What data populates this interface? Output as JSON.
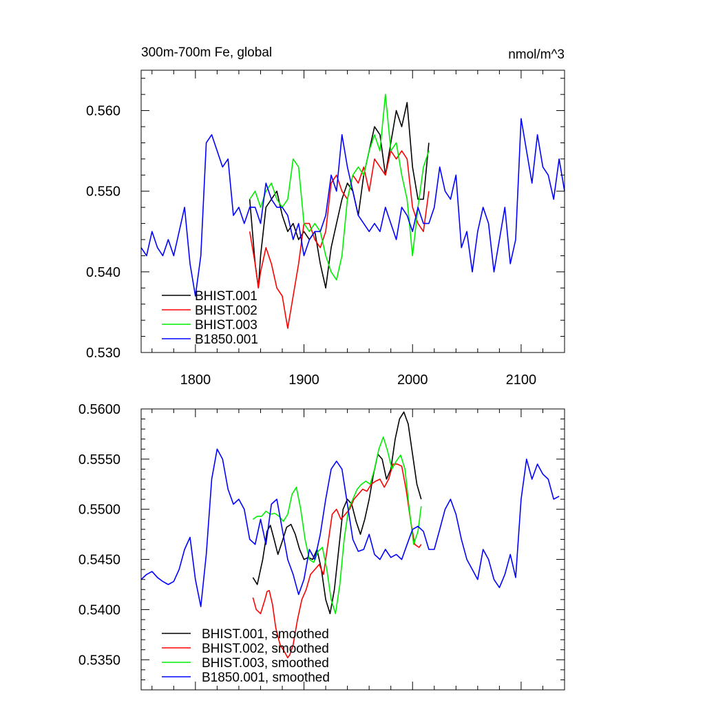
{
  "chart_data": [
    {
      "type": "line",
      "title": "300m-700m Fe, global",
      "units": "nmol/m^3",
      "xlim": [
        1750,
        2140
      ],
      "ylim": [
        0.53,
        0.565
      ],
      "x_ticks": [
        1800,
        1900,
        2000,
        2100
      ],
      "x_tick_labels": [
        "1800",
        "1900",
        "2000",
        "2100"
      ],
      "y_ticks": [
        0.53,
        0.54,
        0.55,
        0.56
      ],
      "y_tick_labels": [
        "0.530",
        "0.540",
        "0.550",
        "0.560"
      ],
      "legend_placement": "bottom-left",
      "series": [
        {
          "name": "BHIST.001",
          "color": "#000000",
          "x": [
            1850,
            1855,
            1858,
            1860,
            1865,
            1870,
            1875,
            1880,
            1885,
            1890,
            1895,
            1900,
            1905,
            1910,
            1915,
            1920,
            1925,
            1930,
            1935,
            1940,
            1945,
            1950,
            1955,
            1960,
            1965,
            1970,
            1975,
            1980,
            1985,
            1990,
            1995,
            2000,
            2005,
            2010,
            2015
          ],
          "y": [
            0.549,
            0.541,
            0.538,
            0.542,
            0.548,
            0.549,
            0.55,
            0.547,
            0.545,
            0.546,
            0.544,
            0.545,
            0.544,
            0.545,
            0.541,
            0.538,
            0.543,
            0.546,
            0.549,
            0.551,
            0.55,
            0.547,
            0.552,
            0.555,
            0.558,
            0.557,
            0.552,
            0.556,
            0.56,
            0.558,
            0.561,
            0.553,
            0.549,
            0.549,
            0.556
          ]
        },
        {
          "name": "BHIST.002",
          "color": "#ff0000",
          "x": [
            1850,
            1855,
            1858,
            1860,
            1865,
            1870,
            1875,
            1880,
            1885,
            1890,
            1895,
            1900,
            1905,
            1910,
            1915,
            1920,
            1925,
            1930,
            1935,
            1940,
            1945,
            1950,
            1955,
            1960,
            1965,
            1970,
            1975,
            1980,
            1985,
            1990,
            1995,
            2000,
            2005,
            2010,
            2015
          ],
          "y": [
            0.545,
            0.541,
            0.538,
            0.54,
            0.543,
            0.541,
            0.538,
            0.537,
            0.533,
            0.537,
            0.541,
            0.546,
            0.546,
            0.544,
            0.543,
            0.545,
            0.551,
            0.552,
            0.55,
            0.549,
            0.552,
            0.551,
            0.553,
            0.55,
            0.554,
            0.553,
            0.552,
            0.555,
            0.554,
            0.555,
            0.554,
            0.548,
            0.546,
            0.545,
            0.55
          ]
        },
        {
          "name": "BHIST.003",
          "color": "#00ee00",
          "x": [
            1850,
            1855,
            1860,
            1865,
            1870,
            1875,
            1880,
            1885,
            1890,
            1895,
            1900,
            1905,
            1910,
            1915,
            1920,
            1925,
            1930,
            1935,
            1940,
            1945,
            1950,
            1955,
            1960,
            1965,
            1970,
            1975,
            1980,
            1985,
            1990,
            1995,
            2000,
            2005,
            2010,
            2015
          ],
          "y": [
            0.549,
            0.55,
            0.548,
            0.55,
            0.551,
            0.549,
            0.548,
            0.549,
            0.554,
            0.553,
            0.546,
            0.545,
            0.546,
            0.545,
            0.542,
            0.54,
            0.539,
            0.542,
            0.549,
            0.552,
            0.553,
            0.552,
            0.555,
            0.557,
            0.555,
            0.562,
            0.555,
            0.556,
            0.552,
            0.549,
            0.542,
            0.548,
            0.553,
            0.555
          ]
        },
        {
          "name": "B1850.001",
          "color": "#0000ff",
          "x": [
            1750,
            1755,
            1760,
            1765,
            1770,
            1775,
            1780,
            1785,
            1790,
            1795,
            1800,
            1805,
            1810,
            1815,
            1820,
            1825,
            1830,
            1835,
            1840,
            1845,
            1850,
            1855,
            1860,
            1865,
            1870,
            1875,
            1880,
            1885,
            1890,
            1895,
            1900,
            1905,
            1910,
            1915,
            1920,
            1925,
            1930,
            1935,
            1940,
            1945,
            1950,
            1955,
            1960,
            1965,
            1970,
            1975,
            1980,
            1985,
            1990,
            1995,
            2000,
            2005,
            2010,
            2015,
            2020,
            2025,
            2030,
            2035,
            2040,
            2045,
            2050,
            2055,
            2060,
            2065,
            2070,
            2075,
            2080,
            2085,
            2090,
            2095,
            2100,
            2105,
            2110,
            2115,
            2120,
            2125,
            2130,
            2135,
            2140
          ],
          "y": [
            0.543,
            0.542,
            0.545,
            0.543,
            0.542,
            0.544,
            0.542,
            0.545,
            0.548,
            0.541,
            0.537,
            0.542,
            0.556,
            0.557,
            0.555,
            0.553,
            0.554,
            0.547,
            0.548,
            0.546,
            0.548,
            0.548,
            0.546,
            0.551,
            0.549,
            0.548,
            0.548,
            0.547,
            0.544,
            0.546,
            0.542,
            0.544,
            0.545,
            0.545,
            0.547,
            0.552,
            0.55,
            0.557,
            0.553,
            0.55,
            0.547,
            0.546,
            0.545,
            0.546,
            0.545,
            0.548,
            0.546,
            0.544,
            0.548,
            0.547,
            0.545,
            0.548,
            0.546,
            0.546,
            0.548,
            0.553,
            0.55,
            0.549,
            0.552,
            0.543,
            0.545,
            0.54,
            0.545,
            0.548,
            0.546,
            0.54,
            0.544,
            0.548,
            0.541,
            0.544,
            0.559,
            0.555,
            0.551,
            0.557,
            0.553,
            0.552,
            0.549,
            0.554,
            0.55
          ]
        }
      ]
    },
    {
      "type": "line",
      "title": "",
      "xlim": [
        1750,
        2140
      ],
      "ylim": [
        0.532,
        0.56
      ],
      "x_ticks": [
        1800,
        1900,
        2000,
        2100
      ],
      "y_ticks": [
        0.535,
        0.54,
        0.545,
        0.55,
        0.555,
        0.56
      ],
      "y_tick_labels": [
        "0.5350",
        "0.5400",
        "0.5450",
        "0.5500",
        "0.5550",
        "0.5600"
      ],
      "legend_placement": "bottom-left",
      "series": [
        {
          "name": "BHIST.001, smoothed",
          "color": "#000000",
          "x": [
            1853,
            1857,
            1862,
            1866,
            1869,
            1872,
            1876,
            1880,
            1884,
            1888,
            1892,
            1896,
            1900,
            1904,
            1908,
            1912,
            1916,
            1920,
            1924,
            1928,
            1932,
            1936,
            1940,
            1944,
            1948,
            1952,
            1956,
            1960,
            1964,
            1968,
            1972,
            1976,
            1980,
            1984,
            1988,
            1992,
            1996,
            2000,
            2004,
            2008
          ],
          "y": [
            0.5432,
            0.5425,
            0.545,
            0.5478,
            0.5484,
            0.5472,
            0.5455,
            0.5468,
            0.5482,
            0.5485,
            0.5475,
            0.546,
            0.545,
            0.5452,
            0.545,
            0.546,
            0.544,
            0.541,
            0.5396,
            0.542,
            0.546,
            0.55,
            0.551,
            0.5505,
            0.5488,
            0.5475,
            0.549,
            0.551,
            0.5535,
            0.5555,
            0.555,
            0.553,
            0.554,
            0.557,
            0.559,
            0.5597,
            0.5585,
            0.5555,
            0.5525,
            0.551
          ]
        },
        {
          "name": "BHIST.002, smoothed",
          "color": "#ff0000",
          "x": [
            1853,
            1856,
            1860,
            1864,
            1866,
            1868,
            1871,
            1874,
            1878,
            1882,
            1885,
            1887,
            1890,
            1894,
            1898,
            1902,
            1906,
            1910,
            1914,
            1918,
            1922,
            1926,
            1930,
            1934,
            1938,
            1942,
            1946,
            1950,
            1954,
            1958,
            1962,
            1966,
            1970,
            1974,
            1978,
            1982,
            1986,
            1990,
            1994,
            1998,
            2002,
            2006,
            2008
          ],
          "y": [
            0.5412,
            0.54,
            0.5396,
            0.541,
            0.5418,
            0.5419,
            0.5405,
            0.5382,
            0.5365,
            0.5358,
            0.5352,
            0.5355,
            0.5365,
            0.539,
            0.541,
            0.542,
            0.5435,
            0.544,
            0.5445,
            0.5435,
            0.5465,
            0.5495,
            0.55,
            0.549,
            0.5495,
            0.55,
            0.551,
            0.5515,
            0.552,
            0.5518,
            0.5525,
            0.5528,
            0.553,
            0.5522,
            0.553,
            0.5545,
            0.5545,
            0.5543,
            0.552,
            0.549,
            0.5465,
            0.5462,
            0.5465
          ]
        },
        {
          "name": "BHIST.003, smoothed",
          "color": "#00ee00",
          "x": [
            1853,
            1857,
            1861,
            1865,
            1869,
            1873,
            1877,
            1881,
            1885,
            1889,
            1893,
            1897,
            1901,
            1905,
            1909,
            1913,
            1917,
            1921,
            1925,
            1929,
            1933,
            1937,
            1941,
            1945,
            1949,
            1953,
            1957,
            1961,
            1965,
            1969,
            1973,
            1977,
            1981,
            1985,
            1989,
            1993,
            1997,
            2001,
            2005,
            2008
          ],
          "y": [
            0.549,
            0.5493,
            0.5493,
            0.5498,
            0.5495,
            0.5496,
            0.5493,
            0.5488,
            0.5495,
            0.5515,
            0.5522,
            0.55,
            0.547,
            0.545,
            0.5447,
            0.5458,
            0.5462,
            0.544,
            0.541,
            0.5396,
            0.5425,
            0.547,
            0.55,
            0.551,
            0.552,
            0.5525,
            0.5528,
            0.5525,
            0.554,
            0.556,
            0.5572,
            0.5558,
            0.554,
            0.5548,
            0.5554,
            0.554,
            0.55,
            0.5465,
            0.5478,
            0.5503
          ]
        },
        {
          "name": "B1850.001, smoothed",
          "color": "#0000ff",
          "x": [
            1750,
            1755,
            1760,
            1765,
            1770,
            1775,
            1780,
            1785,
            1790,
            1795,
            1800,
            1805,
            1810,
            1815,
            1820,
            1825,
            1830,
            1835,
            1840,
            1845,
            1850,
            1855,
            1860,
            1865,
            1870,
            1875,
            1880,
            1885,
            1890,
            1895,
            1900,
            1905,
            1910,
            1915,
            1920,
            1925,
            1930,
            1935,
            1940,
            1945,
            1950,
            1955,
            1960,
            1965,
            1970,
            1975,
            1980,
            1985,
            1990,
            1995,
            2000,
            2005,
            2010,
            2015,
            2020,
            2025,
            2030,
            2035,
            2040,
            2045,
            2050,
            2055,
            2060,
            2065,
            2070,
            2075,
            2080,
            2085,
            2090,
            2095,
            2100,
            2105,
            2110,
            2115,
            2120,
            2125,
            2130,
            2135
          ],
          "y": [
            0.543,
            0.5435,
            0.5438,
            0.5432,
            0.5428,
            0.5425,
            0.5428,
            0.544,
            0.546,
            0.5472,
            0.543,
            0.5403,
            0.5455,
            0.553,
            0.556,
            0.555,
            0.552,
            0.5505,
            0.551,
            0.55,
            0.547,
            0.5465,
            0.549,
            0.5465,
            0.5505,
            0.551,
            0.548,
            0.545,
            0.5435,
            0.5415,
            0.543,
            0.546,
            0.545,
            0.5475,
            0.551,
            0.554,
            0.5548,
            0.554,
            0.5505,
            0.547,
            0.5458,
            0.546,
            0.5475,
            0.5455,
            0.545,
            0.546,
            0.5452,
            0.5455,
            0.545,
            0.5465,
            0.548,
            0.5483,
            0.5478,
            0.546,
            0.546,
            0.548,
            0.55,
            0.551,
            0.5495,
            0.547,
            0.545,
            0.544,
            0.543,
            0.546,
            0.545,
            0.543,
            0.5422,
            0.5435,
            0.5455,
            0.5432,
            0.551,
            0.555,
            0.553,
            0.5545,
            0.5535,
            0.553,
            0.551,
            0.5513
          ]
        }
      ]
    }
  ]
}
